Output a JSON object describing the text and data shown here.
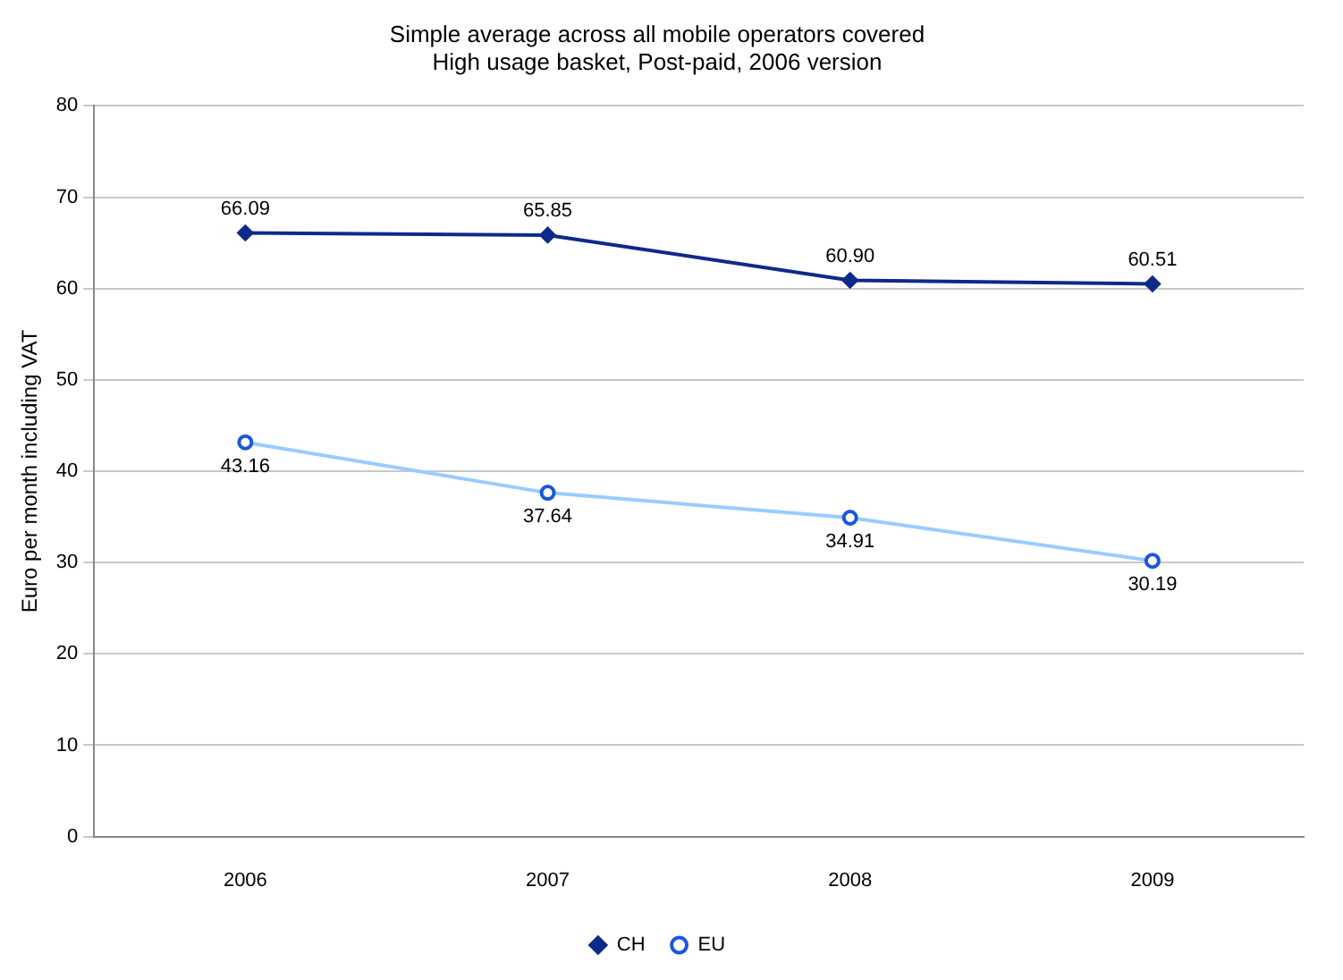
{
  "chart_data": {
    "type": "line",
    "title": "Simple average across all mobile operators covered",
    "subtitle": "High usage basket, Post-paid, 2006 version",
    "ylabel": "Euro per month including VAT",
    "categories": [
      "2006",
      "2007",
      "2008",
      "2009"
    ],
    "series": [
      {
        "name": "CH",
        "color": "#0d2a8a",
        "marker": "diamond",
        "values": [
          66.09,
          65.85,
          60.9,
          60.51
        ],
        "value_labels": [
          "66.09",
          "65.85",
          "60.90",
          "60.51"
        ]
      },
      {
        "name": "EU",
        "color": "#99ccff",
        "marker": "circle",
        "values": [
          43.16,
          37.64,
          34.91,
          30.19
        ],
        "value_labels": [
          "43.16",
          "37.64",
          "34.91",
          "30.19"
        ]
      }
    ],
    "ylim": [
      0,
      80
    ],
    "yticks": [
      0,
      10,
      20,
      30,
      40,
      50,
      60,
      70,
      80
    ],
    "grid": "y",
    "legend": "bottom",
    "line_style": "solid"
  }
}
